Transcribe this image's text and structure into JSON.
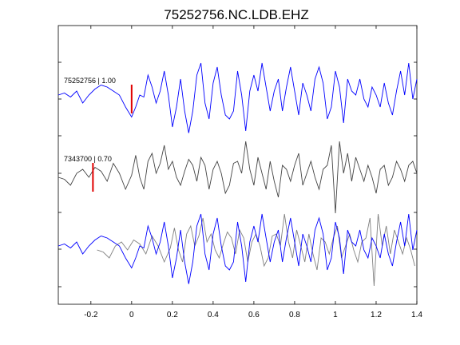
{
  "title": "75252756.NC.LDB.EHZ",
  "chart_data": {
    "type": "line",
    "title": "75252756.NC.LDB.EHZ",
    "xlabel": "",
    "ylabel": "",
    "xlim": [
      -0.36,
      1.4
    ],
    "x_ticks": [
      -0.2,
      0,
      0.2,
      0.4,
      0.6,
      0.8,
      1,
      1.2,
      1.4
    ],
    "x_tick_labels": [
      "-0.2",
      "0",
      "0.2",
      "0.4",
      "0.6",
      "0.8",
      "1",
      "1.2",
      "1.4"
    ],
    "grid": false,
    "traces": [
      {
        "label": "75252756 | 1.00",
        "color": "#0000ff",
        "pick_time": 0.0,
        "offset": 0,
        "x": [
          -0.36,
          -0.33,
          -0.3,
          -0.27,
          -0.24,
          -0.21,
          -0.18,
          -0.15,
          -0.12,
          -0.09,
          -0.06,
          -0.03,
          0.0,
          0.02,
          0.04,
          0.06,
          0.08,
          0.1,
          0.12,
          0.14,
          0.16,
          0.18,
          0.2,
          0.22,
          0.24,
          0.26,
          0.28,
          0.3,
          0.32,
          0.34,
          0.36,
          0.38,
          0.4,
          0.42,
          0.44,
          0.46,
          0.48,
          0.5,
          0.52,
          0.54,
          0.56,
          0.58,
          0.6,
          0.62,
          0.64,
          0.66,
          0.68,
          0.7,
          0.72,
          0.74,
          0.76,
          0.78,
          0.8,
          0.82,
          0.84,
          0.86,
          0.88,
          0.9,
          0.92,
          0.94,
          0.96,
          0.98,
          1.0,
          1.02,
          1.04,
          1.06,
          1.08,
          1.1,
          1.12,
          1.14,
          1.16,
          1.18,
          1.2,
          1.22,
          1.24,
          1.26,
          1.28,
          1.3,
          1.32,
          1.34,
          1.36,
          1.38,
          1.4
        ],
        "y": [
          0.1,
          0.15,
          0.05,
          0.2,
          -0.1,
          0.1,
          0.25,
          0.35,
          0.3,
          0.2,
          0.1,
          -0.2,
          -0.45,
          -0.2,
          0.1,
          0.05,
          0.6,
          0.3,
          -0.1,
          0.2,
          0.7,
          0.1,
          -0.7,
          -0.2,
          0.5,
          -0.3,
          -0.85,
          -0.3,
          0.6,
          0.9,
          -0.1,
          -0.5,
          0.4,
          0.8,
          0.1,
          -0.4,
          -0.5,
          -0.3,
          0.7,
          0.1,
          -0.8,
          0.2,
          0.6,
          0.2,
          0.9,
          0.3,
          -0.3,
          0.2,
          0.5,
          -0.3,
          0.3,
          0.8,
          0.2,
          -0.4,
          0.4,
          0.1,
          -0.3,
          0.5,
          0.8,
          0.4,
          -0.5,
          -0.2,
          0.7,
          0.3,
          -0.6,
          0.5,
          0.2,
          0.1,
          0.5,
          0.0,
          -0.2,
          0.3,
          0.1,
          -0.2,
          0.4,
          -0.1,
          -0.4,
          0.2,
          0.7,
          0.1,
          0.9,
          0.0,
          0.5
        ]
      },
      {
        "label": "7343700 | 0.70",
        "color": "#444444",
        "pick_time": -0.19,
        "offset": 0,
        "x": [
          -0.36,
          -0.33,
          -0.3,
          -0.27,
          -0.24,
          -0.21,
          -0.18,
          -0.15,
          -0.12,
          -0.09,
          -0.06,
          -0.03,
          0.0,
          0.02,
          0.04,
          0.06,
          0.08,
          0.1,
          0.12,
          0.14,
          0.16,
          0.18,
          0.2,
          0.22,
          0.24,
          0.26,
          0.28,
          0.3,
          0.32,
          0.34,
          0.36,
          0.38,
          0.4,
          0.42,
          0.44,
          0.46,
          0.48,
          0.5,
          0.52,
          0.54,
          0.56,
          0.58,
          0.6,
          0.62,
          0.64,
          0.66,
          0.68,
          0.7,
          0.72,
          0.74,
          0.76,
          0.78,
          0.8,
          0.82,
          0.84,
          0.86,
          0.88,
          0.9,
          0.92,
          0.94,
          0.96,
          0.98,
          1.0,
          1.02,
          1.04,
          1.06,
          1.08,
          1.1,
          1.12,
          1.14,
          1.16,
          1.18,
          1.2,
          1.22,
          1.24,
          1.26,
          1.28,
          1.3,
          1.32,
          1.34,
          1.36,
          1.38,
          1.4
        ],
        "y": [
          0.0,
          -0.05,
          -0.2,
          0.1,
          0.2,
          0.0,
          0.25,
          0.15,
          -0.1,
          0.35,
          0.1,
          -0.3,
          0.05,
          0.55,
          0.0,
          -0.3,
          0.4,
          0.6,
          0.1,
          0.35,
          0.8,
          0.2,
          0.4,
          0.0,
          -0.2,
          0.15,
          0.45,
          0.3,
          -0.1,
          0.5,
          0.3,
          -0.3,
          0.2,
          0.4,
          0.1,
          -0.4,
          -0.2,
          0.35,
          0.4,
          0.1,
          0.9,
          0.2,
          -0.2,
          0.5,
          0.1,
          -0.3,
          0.4,
          -0.1,
          -0.5,
          0.3,
          0.2,
          -0.1,
          0.3,
          0.6,
          -0.2,
          0.1,
          0.4,
          0.0,
          -0.3,
          0.2,
          0.3,
          0.8,
          -0.9,
          0.9,
          0.1,
          0.6,
          -0.1,
          0.5,
          0.2,
          -0.1,
          0.3,
          0.0,
          -0.4,
          0.2,
          0.3,
          -0.2,
          0.0,
          0.4,
          0.2,
          -0.1,
          0.3,
          0.4,
          0.1
        ]
      }
    ],
    "overlay": {
      "series": [
        {
          "color": "#0000ff",
          "source": 0,
          "shift": 0.0
        },
        {
          "color": "#808080",
          "source": 1,
          "shift": 0.19
        }
      ]
    },
    "colors": {
      "pick_marker": "#e00000"
    }
  }
}
